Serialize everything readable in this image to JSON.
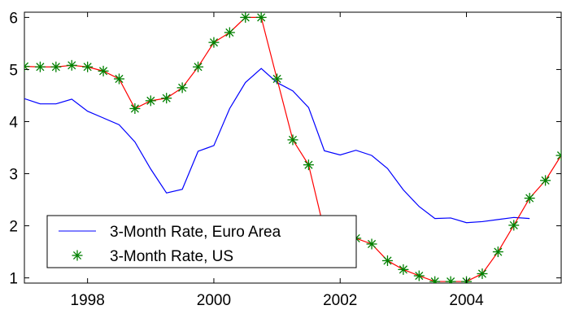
{
  "chart_data": {
    "type": "line",
    "title": "",
    "xlabel": "",
    "ylabel": "",
    "xlim": [
      1997.0,
      2005.5
    ],
    "ylim": [
      0.9,
      6.1
    ],
    "grid": false,
    "legend_position": "bottom-left",
    "x_ticks": [
      {
        "value": 1998,
        "label": "1998"
      },
      {
        "value": 2000,
        "label": "2000"
      },
      {
        "value": 2002,
        "label": "2002"
      },
      {
        "value": 2004,
        "label": "2004"
      }
    ],
    "y_ticks": [
      {
        "value": 1,
        "label": "1"
      },
      {
        "value": 2,
        "label": "2"
      },
      {
        "value": 3,
        "label": "3"
      },
      {
        "value": 4,
        "label": "4"
      },
      {
        "value": 5,
        "label": "5"
      },
      {
        "value": 6,
        "label": "6"
      }
    ],
    "series": [
      {
        "name": "3-Month Rate, Euro Area",
        "color": "#0000ff",
        "marker": "none",
        "x": [
          1997.0,
          1997.25,
          1997.5,
          1997.75,
          1998.0,
          1998.25,
          1998.5,
          1998.75,
          1999.0,
          1999.25,
          1999.5,
          1999.75,
          2000.0,
          2000.25,
          2000.5,
          2000.75,
          2001.0,
          2001.25,
          2001.5,
          2001.75,
          2002.0,
          2002.25,
          2002.5,
          2002.75,
          2003.0,
          2003.25,
          2003.5,
          2003.75,
          2004.0,
          2004.25,
          2004.5,
          2004.75,
          2005.0
        ],
        "y": [
          4.44,
          4.34,
          4.34,
          4.43,
          4.2,
          4.07,
          3.94,
          3.61,
          3.09,
          2.63,
          2.7,
          3.43,
          3.54,
          4.25,
          4.75,
          5.02,
          4.75,
          4.59,
          4.27,
          3.44,
          3.36,
          3.45,
          3.35,
          3.1,
          2.69,
          2.37,
          2.14,
          2.15,
          2.06,
          2.08,
          2.12,
          2.16,
          2.14
        ]
      },
      {
        "name": "3-Month Rate, US",
        "color": "#ff0000",
        "marker_color": "#008000",
        "marker": "asterisk",
        "x": [
          1997.0,
          1997.25,
          1997.5,
          1997.75,
          1998.0,
          1998.25,
          1998.5,
          1998.75,
          1999.0,
          1999.25,
          1999.5,
          1999.75,
          2000.0,
          2000.25,
          2000.5,
          2000.75,
          2001.0,
          2001.25,
          2001.5,
          2001.75,
          2002.0,
          2002.25,
          2002.5,
          2002.75,
          2003.0,
          2003.25,
          2003.5,
          2003.75,
          2004.0,
          2004.25,
          2004.5,
          2004.75,
          2005.0,
          2005.25,
          2005.5
        ],
        "y": [
          5.06,
          5.05,
          5.05,
          5.08,
          5.05,
          4.97,
          4.82,
          4.25,
          4.4,
          4.45,
          4.65,
          5.05,
          5.52,
          5.71,
          6.0,
          6.0,
          4.82,
          3.65,
          3.17,
          1.9,
          1.8,
          1.76,
          1.65,
          1.33,
          1.16,
          1.04,
          0.93,
          0.93,
          0.93,
          1.08,
          1.5,
          2.01,
          2.53,
          2.87,
          3.35
        ]
      }
    ]
  }
}
